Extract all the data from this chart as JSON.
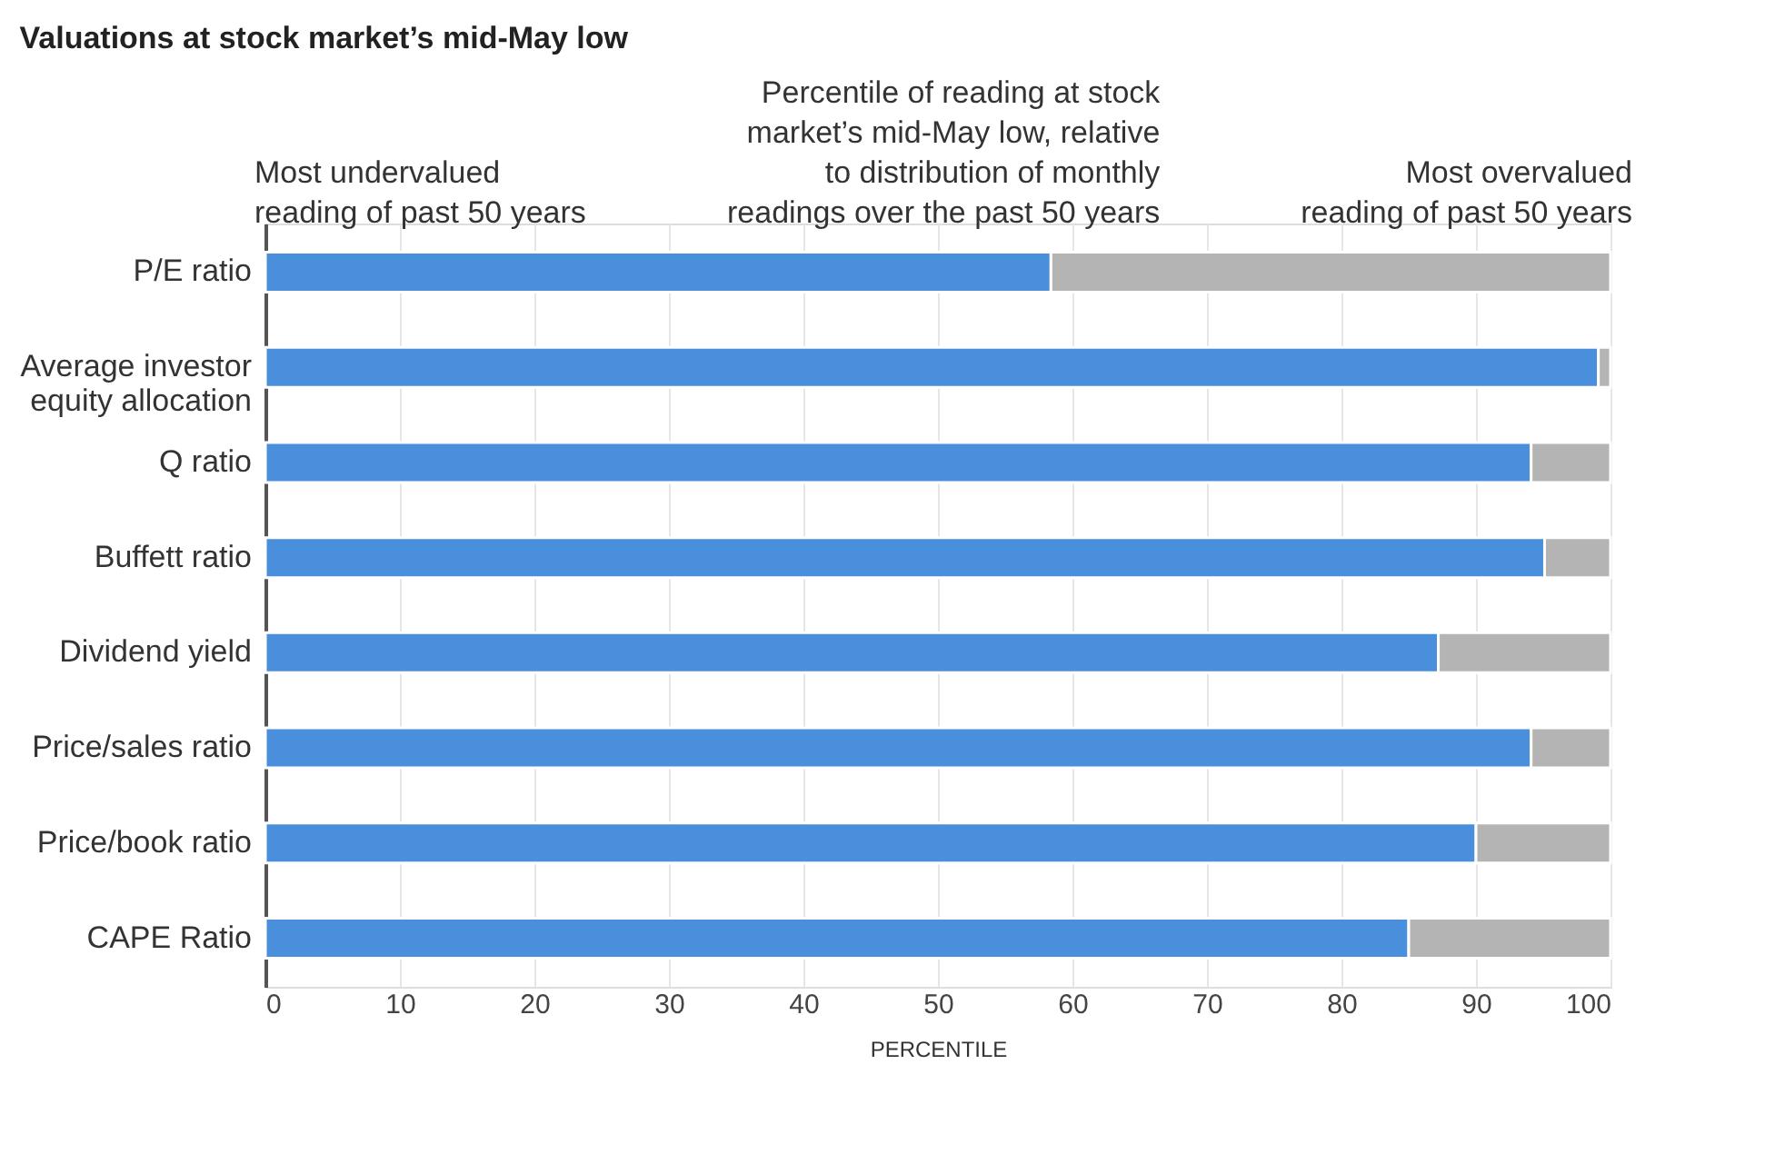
{
  "chart_data": {
    "type": "bar",
    "orientation": "horizontal",
    "stacked": true,
    "title": "Valuations at stock market’s mid-May low",
    "categories": [
      "P/E ratio",
      "Average investor\nequity allocation",
      "Q ratio",
      "Buffett ratio",
      "Dividend yield",
      "Price/sales ratio",
      "Price/book ratio",
      "CAPE Ratio"
    ],
    "series": [
      {
        "color": "#4a8fdc",
        "values": [
          58.4,
          99.1,
          94.1,
          95.1,
          87.2,
          94.1,
          90.0,
          85.0
        ]
      },
      {
        "color": "#b4b4b4",
        "values": [
          41.6,
          0.9,
          5.9,
          4.9,
          12.8,
          5.9,
          10.0,
          15.0
        ]
      }
    ],
    "xlabel": "PERCENTILE",
    "xlim": [
      0,
      100
    ],
    "xticks": [
      0,
      10,
      20,
      30,
      40,
      50,
      60,
      70,
      80,
      90,
      100
    ],
    "grid": "x",
    "annotations": [
      {
        "text": "Most undervalued\nreading of past 50 years",
        "x": 0,
        "y": "P/E ratio"
      },
      {
        "text": "Percentile of reading at stock\nmarket’s mid-May low, relative\nto distribution of monthly\nreadings over the past 50 years",
        "x": 58.4,
        "y": "P/E ratio"
      },
      {
        "text": "Most overvalued\nreading of past 50 years",
        "x": 100,
        "y": "P/E ratio"
      }
    ]
  }
}
